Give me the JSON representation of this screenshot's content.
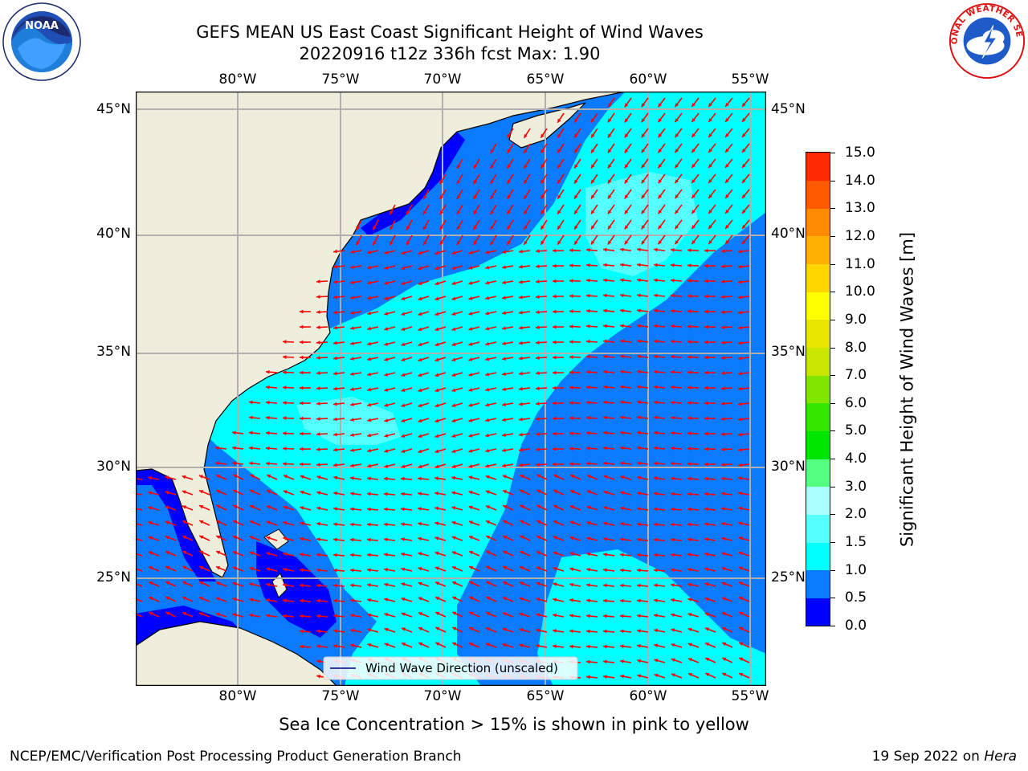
{
  "title": {
    "line1": "GEFS MEAN US East Coast Significant Height of Wind Waves",
    "line2": "20220916 t12z 336h fcst   Max: 1.90"
  },
  "logos": {
    "left": {
      "name": "noaa-logo",
      "text": "NOAA"
    },
    "right": {
      "name": "nws-logo",
      "text": "NATIONAL WEATHER SERVICE"
    }
  },
  "map": {
    "lon_ticks": [
      "80°W",
      "75°W",
      "70°W",
      "65°W",
      "60°W",
      "55°W"
    ],
    "lat_ticks": [
      "45°N",
      "40°N",
      "35°N",
      "30°N",
      "25°N"
    ],
    "legend_label": "Wind Wave Direction (unscaled)",
    "colors": {
      "land": "#efeedc",
      "coast": "#000000",
      "grid": "#b0b0b0",
      "arrow": "#ff0000"
    }
  },
  "colorbar": {
    "label": "Significant Height of Wind Waves [m]",
    "ticks": [
      "0.0",
      "0.5",
      "1.0",
      "1.5",
      "2.0",
      "3.0",
      "4.0",
      "5.0",
      "6.0",
      "7.0",
      "8.0",
      "9.0",
      "10.0",
      "11.0",
      "12.0",
      "13.0",
      "14.0",
      "15.0"
    ],
    "colors": [
      "#0000ff",
      "#0a7aff",
      "#00ffff",
      "#55ffff",
      "#aaffff",
      "#55ff80",
      "#00e600",
      "#33e600",
      "#80e600",
      "#c8e600",
      "#e6e600",
      "#ffff00",
      "#ffd700",
      "#ffb000",
      "#ff8c00",
      "#ff5a00",
      "#ff2800"
    ]
  },
  "sea_ice_note": "Sea Ice Concentration > 15% is shown in pink to yellow",
  "footer": {
    "branch": "NCEP/EMC/Verification Post Processing Product Generation Branch",
    "date": "19 Sep 2022 on ",
    "host": "Hera"
  }
}
